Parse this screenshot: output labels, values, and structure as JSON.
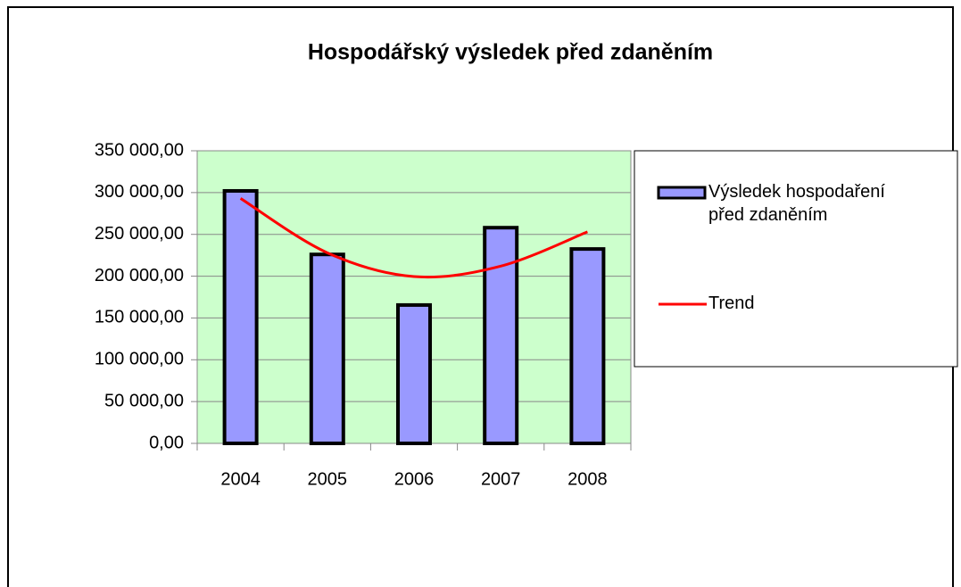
{
  "chart_data": {
    "type": "bar",
    "title": "Hospodářský výsledek před zdaněním",
    "categories": [
      "2004",
      "2005",
      "2006",
      "2007",
      "2008"
    ],
    "series": [
      {
        "name": "Výsledek hospodaření před zdaněním",
        "color": "#9999ff",
        "type": "bar",
        "values": [
          302000,
          226000,
          165500,
          258000,
          232500
        ]
      },
      {
        "name": "Trend",
        "color": "#ff0000",
        "type": "line",
        "values": [
          293000,
          228000,
          199500,
          212000,
          253000
        ]
      }
    ],
    "ylim": [
      0,
      350000
    ],
    "yticks": [
      {
        "value": 0,
        "label": "0,00"
      },
      {
        "value": 50000,
        "label": "50 000,00"
      },
      {
        "value": 100000,
        "label": "100 000,00"
      },
      {
        "value": 150000,
        "label": "150 000,00"
      },
      {
        "value": 200000,
        "label": "200 000,00"
      },
      {
        "value": 250000,
        "label": "250 000,00"
      },
      {
        "value": 300000,
        "label": "300 000,00"
      },
      {
        "value": 350000,
        "label": "350 000,00"
      }
    ],
    "grid": true,
    "legend": "right"
  }
}
